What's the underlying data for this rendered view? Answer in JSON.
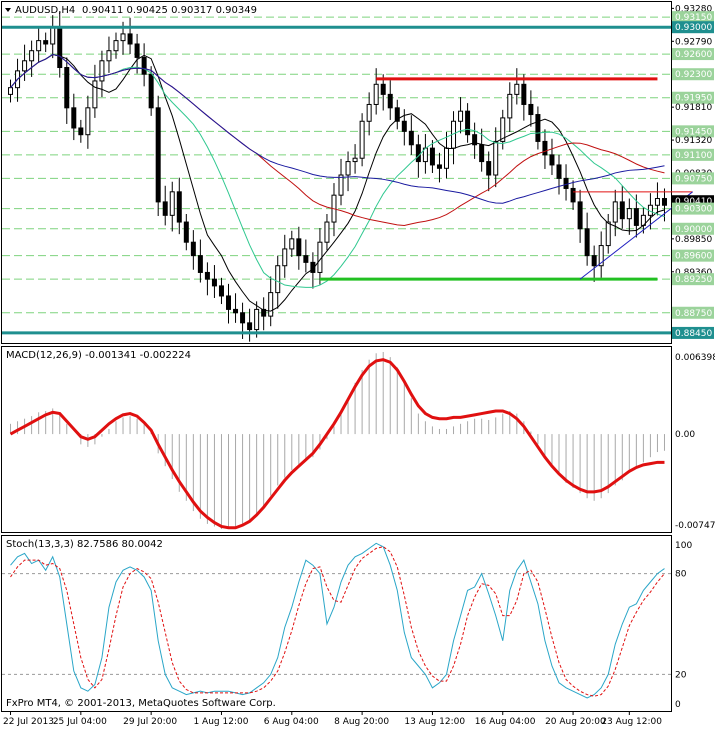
{
  "chart_data": [
    {
      "type": "candlestick",
      "symbol_label": "AUDUSD,H4",
      "title_values": "0.90411 0.90425 0.90317 0.90349",
      "price_axis_labels": [
        "0.93280",
        "0.93150",
        "0.93000",
        "0.92790",
        "0.92600",
        "0.92300",
        "0.91950",
        "0.91810",
        "0.91450",
        "0.91320",
        "0.91100",
        "0.90830",
        "0.90750",
        "0.90410",
        "0.90300",
        "0.90000",
        "0.89850",
        "0.89600",
        "0.89360",
        "0.89250",
        "0.88750",
        "0.88450"
      ],
      "highlighted_levels": [
        {
          "label": "0.93150",
          "color": "#9bd39b"
        },
        {
          "label": "0.93000",
          "color": "#1f8f8f"
        },
        {
          "label": "0.92600",
          "color": "#9bd39b"
        },
        {
          "label": "0.92300",
          "color": "#9bd39b"
        },
        {
          "label": "0.91950",
          "color": "#9bd39b"
        },
        {
          "label": "0.91450",
          "color": "#9bd39b"
        },
        {
          "label": "0.91100",
          "color": "#9bd39b"
        },
        {
          "label": "0.90750",
          "color": "#9bd39b"
        },
        {
          "label": "0.90410",
          "color": "#000000"
        },
        {
          "label": "0.90300",
          "color": "#9bd39b"
        },
        {
          "label": "0.90000",
          "color": "#9bd39b"
        },
        {
          "label": "0.89600",
          "color": "#9bd39b"
        },
        {
          "label": "0.89250",
          "color": "#9bd39b"
        },
        {
          "label": "0.88750",
          "color": "#9bd39b"
        },
        {
          "label": "0.88450",
          "color": "#1f8f8f"
        }
      ],
      "y_range": [
        0.883,
        0.9336
      ],
      "horizontal_lines": [
        {
          "price": 0.93,
          "color": "#1f8f8f",
          "style": "solid-thick"
        },
        {
          "price": 0.8845,
          "color": "#1f8f8f",
          "style": "solid-thick"
        },
        {
          "price": 0.9223,
          "color": "#e01010",
          "style": "solid-thick",
          "from_index": 52,
          "to_index": 92
        },
        {
          "price": 0.8925,
          "color": "#22c022",
          "style": "solid-thick",
          "from_index": 44,
          "to_index": 92
        },
        {
          "price": 0.9055,
          "color": "#e01010",
          "style": "solid",
          "from_index": 80,
          "to_index": 97
        }
      ],
      "trendlines": [
        {
          "color": "#2020c0",
          "from": [
            81,
            0.8925
          ],
          "to": [
            97,
            0.9055
          ]
        }
      ],
      "dashed_levels": [
        0.9315,
        0.926,
        0.923,
        0.9195,
        0.9145,
        0.911,
        0.9075,
        0.903,
        0.9,
        0.896,
        0.8925,
        0.8875
      ],
      "closes": [
        0.921,
        0.9235,
        0.925,
        0.9265,
        0.928,
        0.9275,
        0.93,
        0.924,
        0.918,
        0.915,
        0.914,
        0.918,
        0.922,
        0.925,
        0.9265,
        0.928,
        0.929,
        0.9275,
        0.9255,
        0.923,
        0.918,
        0.904,
        0.902,
        0.9055,
        0.901,
        0.898,
        0.896,
        0.8935,
        0.8925,
        0.8915,
        0.89,
        0.888,
        0.8875,
        0.886,
        0.885,
        0.888,
        0.887,
        0.8905,
        0.8945,
        0.897,
        0.8985,
        0.896,
        0.895,
        0.8935,
        0.898,
        0.901,
        0.905,
        0.908,
        0.91,
        0.9105,
        0.916,
        0.9185,
        0.9215,
        0.92,
        0.918,
        0.916,
        0.9145,
        0.9125,
        0.91,
        0.912,
        0.9095,
        0.909,
        0.912,
        0.916,
        0.9175,
        0.914,
        0.9125,
        0.91,
        0.908,
        0.913,
        0.9165,
        0.92,
        0.9215,
        0.9185,
        0.917,
        0.913,
        0.911,
        0.9095,
        0.9075,
        0.906,
        0.904,
        0.9,
        0.896,
        0.8945,
        0.8975,
        0.901,
        0.904,
        0.9015,
        0.903,
        0.9005,
        0.902,
        0.9035,
        0.9045,
        0.9035
      ],
      "indicators": [
        {
          "label": "MACD(12,26,9) -0.001341 -0.002224",
          "axis_labels": [
            "0.006398",
            "0.00",
            "-0.007475"
          ],
          "range": [
            -0.007475,
            0.006398
          ],
          "histogram": [
            0.0008,
            0.001,
            0.0012,
            0.0014,
            0.0017,
            0.0018,
            0.002,
            0.0015,
            0.0008,
            0.0,
            -0.0008,
            -0.001,
            -0.0008,
            -0.0002,
            0.0004,
            0.001,
            0.0013,
            0.0014,
            0.0012,
            0.0008,
            0.0002,
            -0.0015,
            -0.0025,
            -0.0035,
            -0.0045,
            -0.0052,
            -0.006,
            -0.0066,
            -0.007,
            -0.0072,
            -0.0074,
            -0.0073,
            -0.0072,
            -0.007,
            -0.0068,
            -0.0062,
            -0.0056,
            -0.0048,
            -0.004,
            -0.0034,
            -0.0028,
            -0.0024,
            -0.002,
            -0.0018,
            -0.0012,
            -0.0004,
            0.0006,
            0.0016,
            0.0028,
            0.004,
            0.005,
            0.0058,
            0.0063,
            0.0064,
            0.006,
            0.0052,
            0.004,
            0.0028,
            0.0016,
            0.001,
            0.0006,
            0.0004,
            0.0004,
            0.0006,
            0.0008,
            0.001,
            0.0012,
            0.0012,
            0.0011,
            0.0013,
            0.0016,
            0.0018,
            0.0016,
            0.001,
            0.0002,
            -0.0008,
            -0.0018,
            -0.0026,
            -0.0032,
            -0.0038,
            -0.0042,
            -0.0046,
            -0.005,
            -0.0052,
            -0.005,
            -0.0046,
            -0.004,
            -0.0036,
            -0.003,
            -0.0026,
            -0.0022,
            -0.0018,
            -0.0014,
            -0.0013
          ],
          "signal": [
            0.0,
            0.0003,
            0.0006,
            0.0009,
            0.0012,
            0.0015,
            0.0017,
            0.0016,
            0.001,
            0.0004,
            -0.0002,
            -0.0004,
            -0.0002,
            0.0003,
            0.0008,
            0.0012,
            0.0015,
            0.0016,
            0.0014,
            0.0009,
            0.0003,
            -0.0008,
            -0.0018,
            -0.0028,
            -0.0037,
            -0.0045,
            -0.0053,
            -0.006,
            -0.0065,
            -0.0069,
            -0.0072,
            -0.0073,
            -0.0073,
            -0.0071,
            -0.0068,
            -0.0063,
            -0.0057,
            -0.005,
            -0.0043,
            -0.0036,
            -0.003,
            -0.0025,
            -0.002,
            -0.0015,
            -0.0008,
            0.0,
            0.0008,
            0.0017,
            0.0027,
            0.0037,
            0.0046,
            0.0053,
            0.0057,
            0.0058,
            0.0056,
            0.005,
            0.0041,
            0.0031,
            0.0022,
            0.0016,
            0.0013,
            0.0012,
            0.0012,
            0.0013,
            0.0013,
            0.0014,
            0.0015,
            0.0016,
            0.0017,
            0.0018,
            0.0018,
            0.0016,
            0.0012,
            0.0006,
            -0.0002,
            -0.001,
            -0.0018,
            -0.0025,
            -0.0031,
            -0.0036,
            -0.004,
            -0.0043,
            -0.0045,
            -0.0045,
            -0.0044,
            -0.0041,
            -0.0037,
            -0.0033,
            -0.0029,
            -0.0026,
            -0.0024,
            -0.0023,
            -0.0022,
            -0.0022
          ]
        },
        {
          "label": "Stoch(13,3,3) 82.7586 80.0042",
          "axis_labels": [
            "100",
            "80",
            "20",
            "0"
          ],
          "range": [
            0,
            100
          ],
          "main": [
            85,
            90,
            92,
            86,
            88,
            82,
            90,
            78,
            50,
            22,
            12,
            10,
            14,
            30,
            60,
            75,
            82,
            84,
            82,
            78,
            70,
            40,
            20,
            12,
            10,
            8,
            9,
            10,
            9,
            10,
            10,
            10,
            9,
            8,
            9,
            12,
            15,
            20,
            30,
            48,
            60,
            75,
            88,
            85,
            80,
            50,
            60,
            75,
            85,
            90,
            92,
            95,
            98,
            96,
            85,
            70,
            45,
            30,
            25,
            20,
            12,
            15,
            20,
            40,
            55,
            70,
            72,
            80,
            68,
            55,
            40,
            70,
            82,
            88,
            75,
            62,
            40,
            25,
            15,
            12,
            10,
            8,
            6,
            8,
            12,
            20,
            38,
            50,
            60,
            62,
            70,
            75,
            80,
            83
          ],
          "signal": [
            78,
            84,
            88,
            88,
            88,
            85,
            86,
            83,
            70,
            50,
            30,
            17,
            12,
            17,
            35,
            55,
            72,
            80,
            83,
            81,
            77,
            63,
            45,
            27,
            16,
            11,
            9,
            9,
            9,
            9,
            9,
            9,
            9,
            9,
            9,
            10,
            12,
            16,
            22,
            33,
            46,
            61,
            74,
            83,
            84,
            72,
            64,
            63,
            73,
            83,
            89,
            92,
            95,
            96,
            93,
            84,
            67,
            48,
            34,
            25,
            19,
            16,
            16,
            25,
            38,
            55,
            66,
            74,
            73,
            68,
            55,
            55,
            64,
            80,
            82,
            75,
            59,
            42,
            27,
            17,
            13,
            10,
            8,
            7,
            8,
            13,
            23,
            36,
            49,
            57,
            64,
            69,
            75,
            80
          ]
        }
      ],
      "x_tick_labels": [
        "22 Jul 2013",
        "25 Jul 04:00",
        "29 Jul 20:00",
        "1 Aug 12:00",
        "6 Aug 04:00",
        "8 Aug 20:00",
        "13 Aug 12:00",
        "16 Aug 04:00",
        "20 Aug 20:00",
        "23 Aug 12:00"
      ],
      "copyright": "FxPro MT4, © 2001-2013, MetaQuotes Software Corp."
    }
  ]
}
